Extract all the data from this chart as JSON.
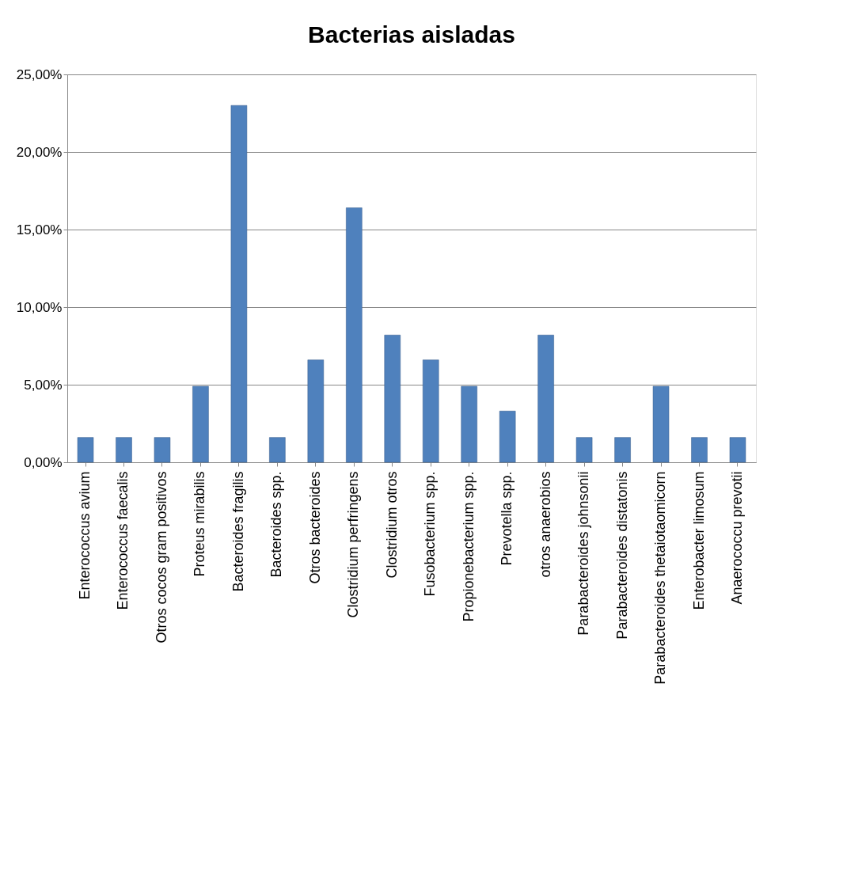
{
  "chart_data": {
    "type": "bar",
    "title": "Bacterias aisladas",
    "categories": [
      "Enterococcus avium",
      "Enterococcus faecalis",
      "Otros cocos gram positivos",
      "Proteus mirabilis",
      "Bacteroides fragilis",
      "Bacteroides spp.",
      "Otros bacteroides",
      "Clostridium perfringens",
      "Clostridium otros",
      "Fusobacterium spp.",
      "Propionebacterium spp.",
      "Prevotella spp.",
      "otros anaerobios",
      "Parabacteroides johnsonii",
      "Parabacteroides distatonis",
      "Parabacteroides thetaiotaomicorn",
      "Enterobacter limosum",
      "Anaerococcu prevotii"
    ],
    "values": [
      1.6,
      1.6,
      1.6,
      4.9,
      23.0,
      1.6,
      6.6,
      16.4,
      8.2,
      6.6,
      4.9,
      3.3,
      8.2,
      1.6,
      1.6,
      4.9,
      1.6,
      1.6
    ],
    "color": "#4f81bd",
    "ylim": [
      0,
      25
    ],
    "yticks": [
      {
        "value": 0,
        "label": "0,00%"
      },
      {
        "value": 5,
        "label": "5,00%"
      },
      {
        "value": 10,
        "label": "10,00%"
      },
      {
        "value": 15,
        "label": "15,00%"
      },
      {
        "value": 20,
        "label": "20,00%"
      },
      {
        "value": 25,
        "label": "25,00%"
      }
    ],
    "grid": "y"
  }
}
